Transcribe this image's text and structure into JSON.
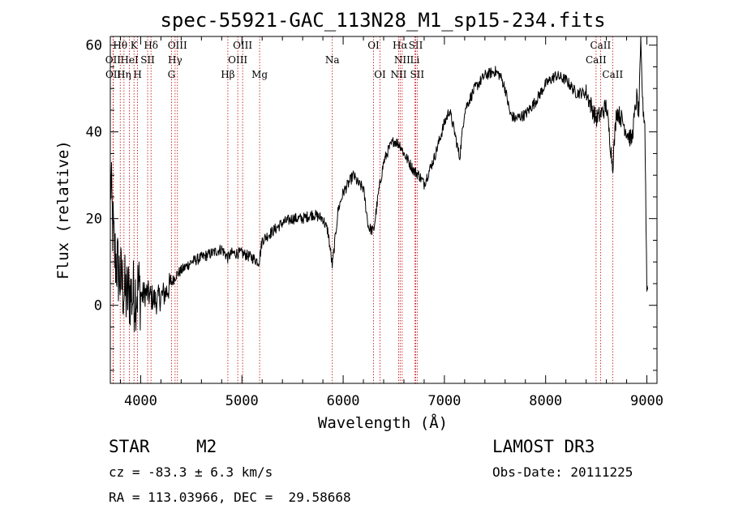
{
  "chart_data": {
    "type": "line",
    "title": "spec-55921-GAC_113N28_M1_sp15-234.fits",
    "xlabel": "Wavelength (Å)",
    "ylabel": "Flux (relative)",
    "xlim": [
      3700,
      9100
    ],
    "ylim": [
      -18,
      62
    ],
    "xticks": [
      4000,
      5000,
      6000,
      7000,
      8000,
      9000
    ],
    "xtick_labels": [
      "4000",
      "5000",
      "6000",
      "7000",
      "8000",
      "9000"
    ],
    "yticks": [
      0,
      20,
      40,
      60
    ],
    "ytick_labels": [
      "0",
      "20",
      "40",
      "60"
    ],
    "spectrum_anchors": {
      "x": [
        3700,
        3720,
        3740,
        3760,
        3780,
        3800,
        3830,
        3860,
        3890,
        3920,
        3950,
        3980,
        4010,
        4050,
        4100,
        4150,
        4200,
        4250,
        4300,
        4350,
        4400,
        4500,
        4600,
        4700,
        4800,
        4860,
        4900,
        5000,
        5100,
        5170,
        5200,
        5300,
        5400,
        5500,
        5600,
        5700,
        5800,
        5850,
        5893,
        5950,
        6000,
        6050,
        6100,
        6150,
        6200,
        6250,
        6300,
        6350,
        6400,
        6450,
        6500,
        6563,
        6600,
        6650,
        6700,
        6750,
        6800,
        6900,
        7000,
        7050,
        7100,
        7150,
        7200,
        7300,
        7400,
        7500,
        7550,
        7600,
        7650,
        7700,
        7800,
        7900,
        8000,
        8100,
        8200,
        8300,
        8400,
        8450,
        8498,
        8542,
        8600,
        8662,
        8700,
        8750,
        8800,
        8850,
        8880,
        8900,
        8920,
        8940,
        8960,
        8980,
        9000
      ],
      "y": [
        30,
        20,
        12,
        10,
        8,
        6,
        4,
        2,
        3,
        2,
        3,
        4,
        2,
        3,
        2,
        1,
        2,
        3,
        5,
        7,
        8,
        10,
        11,
        12,
        13,
        11,
        12,
        12,
        11,
        10,
        15,
        17,
        19,
        20,
        20,
        21,
        20,
        17,
        9,
        22,
        26,
        28,
        30,
        28,
        27,
        18,
        17,
        26,
        33,
        36,
        38,
        37,
        35,
        33,
        31,
        30,
        28,
        34,
        42,
        45,
        40,
        34,
        45,
        50,
        53,
        54,
        53,
        50,
        44,
        43,
        44,
        47,
        51,
        53,
        52,
        49,
        49,
        46,
        43,
        44,
        46,
        32,
        45,
        43,
        40,
        38,
        44,
        48,
        44,
        60,
        46,
        42,
        4
      ]
    },
    "line_markers": [
      {
        "label": "Hθ",
        "x": 3798,
        "row": 0
      },
      {
        "label": "K",
        "x": 3934,
        "row": 0
      },
      {
        "label": "Hδ",
        "x": 4102,
        "row": 0
      },
      {
        "label": "OIII",
        "x": 4363,
        "row": 0
      },
      {
        "label": "OIII",
        "x": 5007,
        "row": 0
      },
      {
        "label": "OI",
        "x": 6300,
        "row": 0
      },
      {
        "label": "Hα",
        "x": 6563,
        "row": 0
      },
      {
        "label": "SII",
        "x": 6717,
        "row": 0
      },
      {
        "label": "CaII",
        "x": 8542,
        "row": 0
      },
      {
        "label": "OII",
        "x": 3727,
        "row": 1
      },
      {
        "label": "HeI",
        "x": 3889,
        "row": 1
      },
      {
        "label": "SII",
        "x": 4069,
        "row": 1
      },
      {
        "label": "Hγ",
        "x": 4340,
        "row": 1
      },
      {
        "label": "OIII",
        "x": 4959,
        "row": 1
      },
      {
        "label": "Na",
        "x": 5893,
        "row": 1
      },
      {
        "label": "NII",
        "x": 6583,
        "row": 1
      },
      {
        "label": "Li",
        "x": 6708,
        "row": 1
      },
      {
        "label": "CaII",
        "x": 8498,
        "row": 1
      },
      {
        "label": "OII",
        "x": 3729,
        "row": 2
      },
      {
        "label": "Hη",
        "x": 3835,
        "row": 2
      },
      {
        "label": "H",
        "x": 3969,
        "row": 2
      },
      {
        "label": "G",
        "x": 4304,
        "row": 2
      },
      {
        "label": "Hβ",
        "x": 4861,
        "row": 2
      },
      {
        "label": "Mg",
        "x": 5175,
        "row": 2
      },
      {
        "label": "OI",
        "x": 6364,
        "row": 2
      },
      {
        "label": "NII",
        "x": 6548,
        "row": 2
      },
      {
        "label": "SII",
        "x": 6731,
        "row": 2
      },
      {
        "label": "CaII",
        "x": 8662,
        "row": 2
      }
    ]
  },
  "info": {
    "class_label": "STAR",
    "subclass_label": "M2",
    "cz_text": "cz = -83.3 ± 6.3 km/s",
    "coords_text": "RA = 113.03966, DEC =  29.58668",
    "survey_text": "LAMOST DR3",
    "obsdate_text": "Obs-Date: 20111225"
  },
  "colors": {
    "spectrum": "#000000",
    "marker_line": "#c00000",
    "axis": "#000000",
    "background": "#ffffff"
  }
}
